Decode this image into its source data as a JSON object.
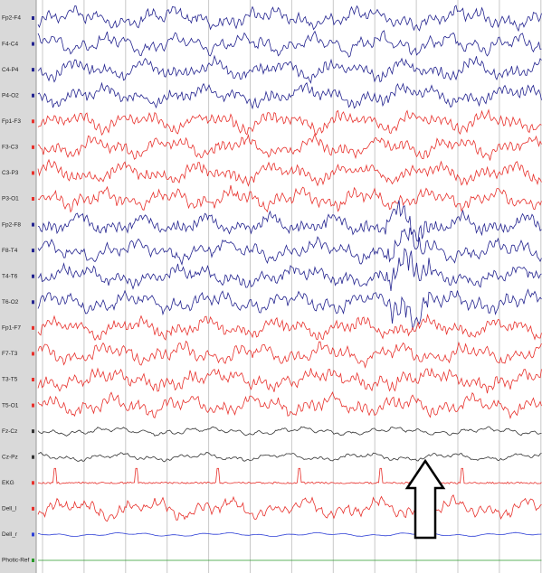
{
  "channels": [
    {
      "label": "Fp2-F4",
      "color": "#23238f"
    },
    {
      "label": "F4-C4",
      "color": "#23238f"
    },
    {
      "label": "C4-P4",
      "color": "#23238f"
    },
    {
      "label": "P4-O2",
      "color": "#23238f"
    },
    {
      "label": "Fp1-F3",
      "color": "#e8312c"
    },
    {
      "label": "F3-C3",
      "color": "#e8312c"
    },
    {
      "label": "C3-P3",
      "color": "#e8312c"
    },
    {
      "label": "P3-O1",
      "color": "#e8312c"
    },
    {
      "label": "Fp2-F8",
      "color": "#23238f"
    },
    {
      "label": "F8-T4",
      "color": "#23238f"
    },
    {
      "label": "T4-T6",
      "color": "#23238f"
    },
    {
      "label": "T6-O2",
      "color": "#23238f"
    },
    {
      "label": "Fp1-F7",
      "color": "#e8312c"
    },
    {
      "label": "F7-T3",
      "color": "#e8312c"
    },
    {
      "label": "T3-T5",
      "color": "#e8312c"
    },
    {
      "label": "T5-O1",
      "color": "#e8312c"
    },
    {
      "label": "Fz-Cz",
      "color": "#333333"
    },
    {
      "label": "Cz-Pz",
      "color": "#333333"
    },
    {
      "label": "EKG",
      "color": "#e8312c"
    },
    {
      "label": "Dell_l",
      "color": "#e8312c"
    },
    {
      "label": "Dell_r",
      "color": "#2d3fd6"
    },
    {
      "label": "Photic-Ref",
      "color": "#2a9a2a"
    }
  ]
}
